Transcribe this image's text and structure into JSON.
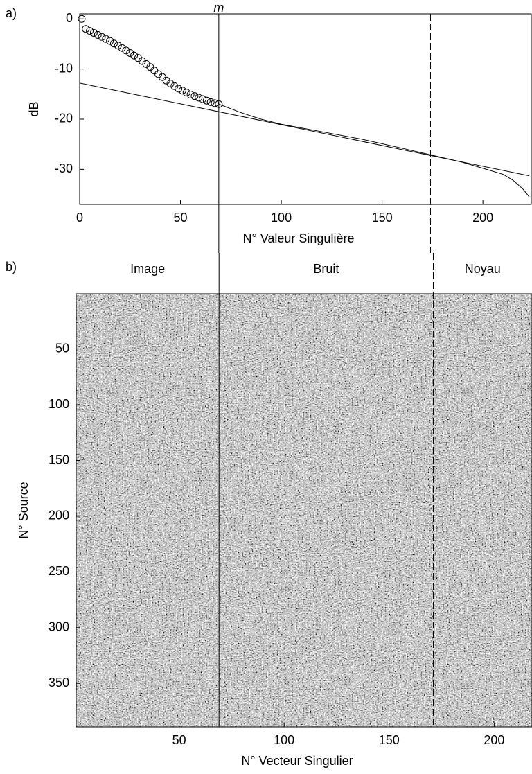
{
  "chart_data": [
    {
      "type": "line",
      "panel_label": "a)",
      "annotation": "m",
      "xlabel": "N° Valeur Singulière",
      "ylabel": "dB",
      "xlim": [
        0,
        224
      ],
      "ylim": [
        -37,
        1
      ],
      "xticks": [
        0,
        50,
        100,
        150,
        200
      ],
      "yticks": [
        0,
        -10,
        -20,
        -30
      ],
      "vlines": [
        {
          "value": 69,
          "style": "solid"
        },
        {
          "value": 174,
          "style": "dashed"
        }
      ],
      "series": [
        {
          "color": "#000000",
          "marker": "circle",
          "x": [
            1,
            3,
            5,
            7,
            9,
            11,
            13,
            15,
            17,
            19,
            21,
            23,
            25,
            27,
            29,
            31,
            33,
            35,
            37,
            39,
            41,
            43,
            45,
            47,
            49,
            51,
            53,
            55,
            57,
            59,
            61,
            63,
            65,
            67,
            69
          ],
          "values": [
            0,
            -2.0,
            -2.4,
            -2.8,
            -3.2,
            -3.6,
            -4.0,
            -4.4,
            -4.9,
            -5.3,
            -5.8,
            -6.3,
            -6.8,
            -7.3,
            -7.8,
            -8.4,
            -9.0,
            -9.6,
            -10.3,
            -11.0,
            -11.6,
            -12.3,
            -12.9,
            -13.4,
            -13.9,
            -14.3,
            -14.7,
            -15.1,
            -15.4,
            -15.7,
            -16.0,
            -16.3,
            -16.6,
            -16.8,
            -17.0
          ]
        },
        {
          "color": "#000000",
          "marker": "none",
          "x": [
            69,
            80,
            90,
            100,
            120,
            140,
            160,
            175,
            190,
            200,
            210,
            215,
            220,
            223
          ],
          "values": [
            -17,
            -18.7,
            -20,
            -21,
            -22.5,
            -24,
            -25.8,
            -27.2,
            -28.6,
            -29.8,
            -31,
            -32.2,
            -34,
            -35.5
          ]
        },
        {
          "color": "#000000",
          "marker": "none",
          "x": [
            0,
            223
          ],
          "values": [
            -12.8,
            -31.3
          ]
        }
      ]
    },
    {
      "type": "heatmap",
      "panel_label": "b)",
      "xlabel": "N° Vecteur Singulier",
      "ylabel": "N° Source",
      "xlim": [
        1,
        218
      ],
      "ylim": [
        0.5,
        389
      ],
      "xticks": [
        50,
        100,
        150,
        200
      ],
      "yticks": [
        50,
        100,
        150,
        200,
        250,
        300,
        350
      ],
      "vlines": [
        {
          "value": 69,
          "style": "solid"
        },
        {
          "value": 171,
          "style": "dashed"
        }
      ],
      "regions": [
        "Image",
        "Bruit",
        "Noyau"
      ]
    }
  ]
}
